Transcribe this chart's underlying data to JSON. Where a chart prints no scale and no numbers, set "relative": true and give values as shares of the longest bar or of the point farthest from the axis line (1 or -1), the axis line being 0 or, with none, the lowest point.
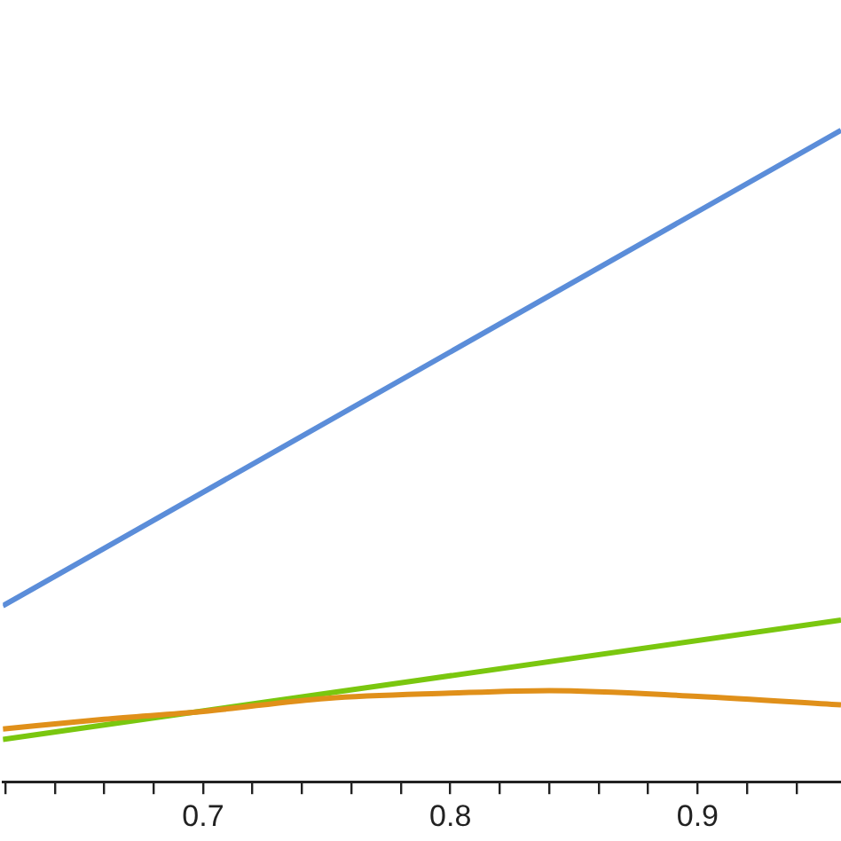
{
  "chart_data": {
    "type": "line",
    "relative": true,
    "xlim": [
      0.619,
      0.958
    ],
    "xticks": [
      {
        "value": 0.62,
        "label": null
      },
      {
        "value": 0.64,
        "label": null
      },
      {
        "value": 0.66,
        "label": null
      },
      {
        "value": 0.68,
        "label": null
      },
      0.7,
      {
        "value": 0.72,
        "label": null
      },
      {
        "value": 0.74,
        "label": null
      },
      {
        "value": 0.76,
        "label": null
      },
      {
        "value": 0.78,
        "label": null
      },
      0.8,
      {
        "value": 0.82,
        "label": null
      },
      {
        "value": 0.84,
        "label": null
      },
      {
        "value": 0.86,
        "label": null
      },
      {
        "value": 0.88,
        "label": null
      },
      0.9,
      {
        "value": 0.92,
        "label": null
      },
      {
        "value": 0.94,
        "label": null
      }
    ],
    "tick_labels": "x",
    "legend": false,
    "marker": "none",
    "line_style": "solid",
    "series": [
      {
        "color": "#5b8dd9",
        "x": [
          0.619,
          0.958
        ],
        "values": [
          0.27,
          1
        ]
      },
      {
        "color": "#e0901a",
        "x": [
          0.619,
          0.66,
          0.7,
          0.75,
          0.8,
          0.84,
          0.9,
          0.958
        ],
        "values": [
          0.081,
          0.096,
          0.108,
          0.128,
          0.136,
          0.14,
          0.131,
          0.118
        ]
      },
      {
        "color": "#7ac70f",
        "x": [
          0.619,
          0.958
        ],
        "values": [
          0.065,
          0.248
        ]
      }
    ]
  }
}
